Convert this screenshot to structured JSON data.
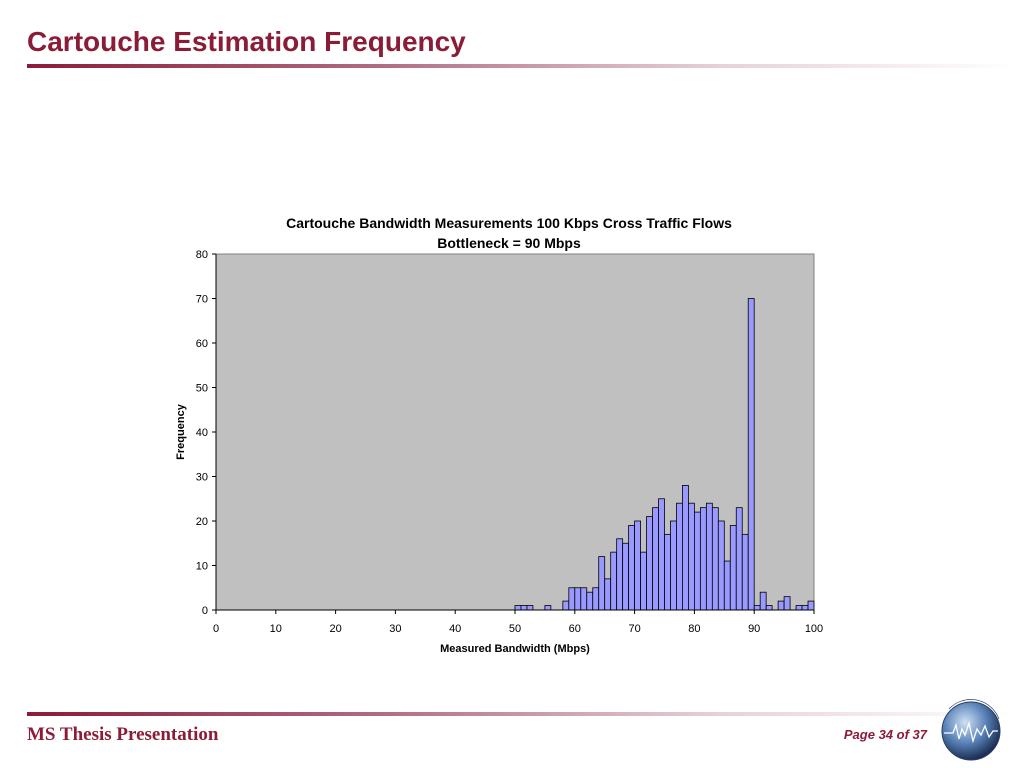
{
  "slide": {
    "title": "Cartouche Estimation Frequency",
    "footer_left": "MS Thesis Presentation",
    "footer_right": "Page 34 of 37"
  },
  "colors": {
    "accent": "#8b1c38",
    "bar_fill": "#9999ff",
    "plot_background": "#c0c0c0"
  },
  "chart_data": {
    "type": "bar",
    "title": "Cartouche Bandwidth Measurements 100 Kbps Cross Traffic Flows",
    "subtitle": "Bottleneck = 90 Mbps",
    "xlabel": "Measured Bandwidth (Mbps)",
    "ylabel": "Frequency",
    "xlim": [
      0,
      100
    ],
    "ylim": [
      0,
      80
    ],
    "x_ticks": [
      0,
      10,
      20,
      30,
      40,
      50,
      60,
      70,
      80,
      90,
      100
    ],
    "y_ticks": [
      0,
      10,
      20,
      30,
      40,
      50,
      60,
      70,
      80
    ],
    "bin_width": 1,
    "grid": false,
    "legend": "none",
    "x": [
      51,
      52,
      53,
      56,
      59,
      60,
      61,
      62,
      63,
      64,
      65,
      66,
      67,
      68,
      69,
      70,
      71,
      72,
      73,
      74,
      75,
      76,
      77,
      78,
      79,
      80,
      81,
      82,
      83,
      84,
      85,
      86,
      87,
      88,
      89,
      90,
      91,
      92,
      93,
      95,
      96,
      98,
      99,
      100
    ],
    "values": [
      1,
      1,
      1,
      1,
      2,
      5,
      5,
      5,
      4,
      5,
      12,
      7,
      13,
      16,
      15,
      19,
      20,
      13,
      21,
      23,
      25,
      17,
      20,
      24,
      28,
      24,
      22,
      23,
      24,
      23,
      20,
      11,
      19,
      23,
      17,
      70,
      1,
      4,
      1,
      2,
      3,
      1,
      1,
      2
    ]
  }
}
